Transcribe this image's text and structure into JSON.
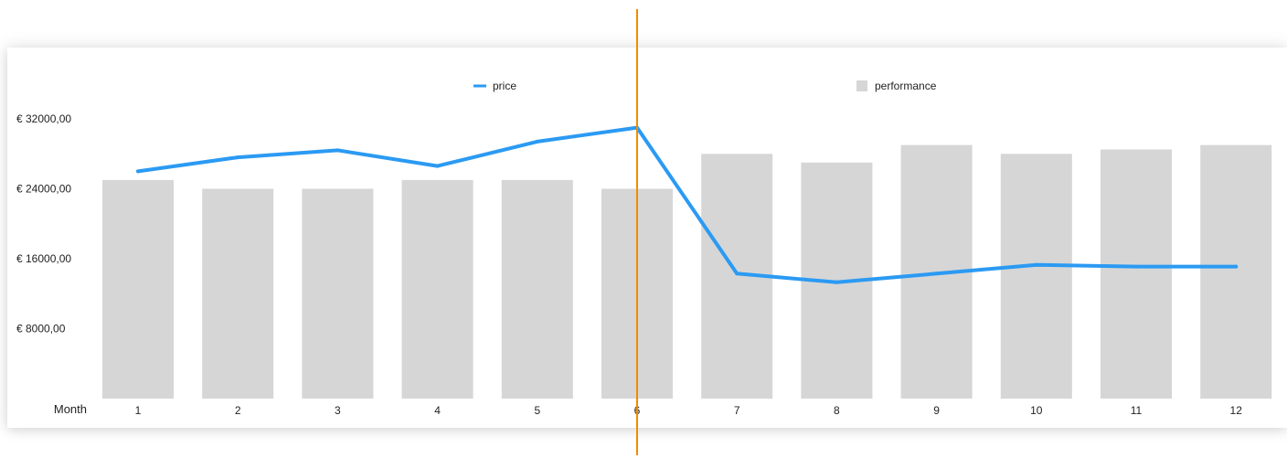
{
  "chart_data": {
    "type": "bar",
    "xlabel": "Month",
    "categories": [
      "1",
      "2",
      "3",
      "4",
      "5",
      "6",
      "7",
      "8",
      "9",
      "10",
      "11",
      "12"
    ],
    "series": [
      {
        "name": "price",
        "type": "line",
        "values": [
          26000,
          27600,
          28400,
          26600,
          29400,
          31000,
          14300,
          13300,
          14300,
          15300,
          15100,
          15100
        ]
      },
      {
        "name": "performance",
        "type": "bar",
        "values": [
          25000,
          24000,
          24000,
          25000,
          25000,
          24000,
          28000,
          27000,
          29000,
          28000,
          28500,
          29000
        ]
      }
    ],
    "y_ticks": [
      {
        "value": 8000,
        "label": "€ 8000,00"
      },
      {
        "value": 16000,
        "label": "€ 16000,00"
      },
      {
        "value": 24000,
        "label": "€ 24000,00"
      },
      {
        "value": 32000,
        "label": "€ 32000,00"
      }
    ],
    "ylim": [
      0,
      36000
    ],
    "grid": false,
    "legend_position": "top",
    "marker_line": {
      "category": "6",
      "color": "#f08c00"
    },
    "colors": {
      "price": "#2b9af3",
      "performance": "#d6d6d6"
    }
  }
}
